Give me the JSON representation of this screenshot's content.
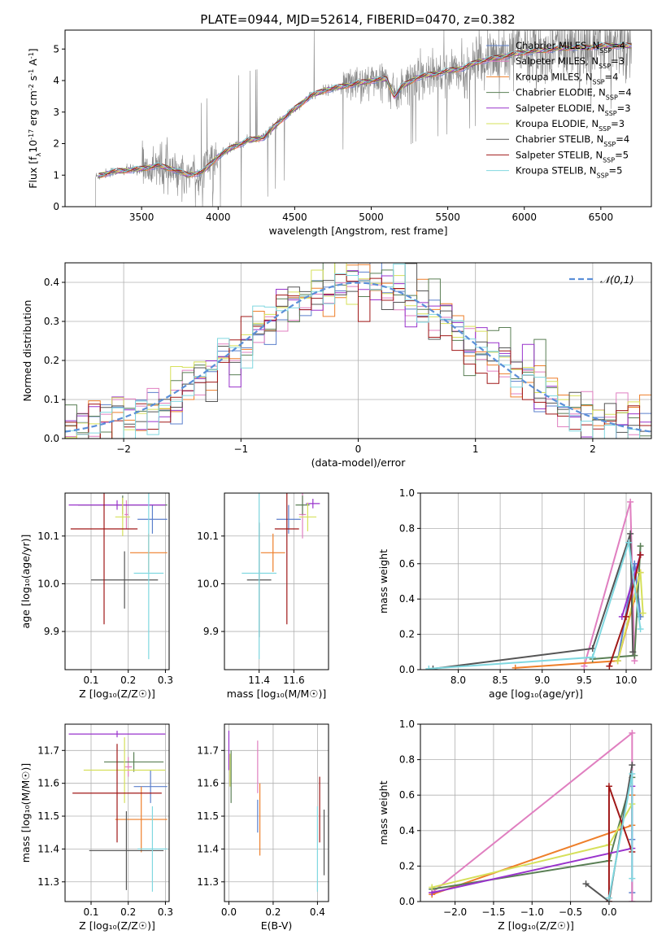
{
  "figure": {
    "title": "PLATE=0944, MJD=52614, FIBERID=0470, z=0.382"
  },
  "colors": {
    "chabrier_miles": "#5b7fcc",
    "salpeter_miles": "#e07fc0",
    "kroupa_miles": "#ee7f2a",
    "chabrier_elodie": "#5a7f55",
    "salpeter_elodie": "#9933cc",
    "kroupa_elodie": "#d6e05a",
    "chabrier_stelib": "#555555",
    "salpeter_stelib": "#a01818",
    "kroupa_stelib": "#80d8e0",
    "observed": "#888888",
    "normal_curve": "#5b8fd8"
  },
  "chart_data": [
    {
      "id": "spectrum",
      "type": "line",
      "xlabel": "wavelength [Angstrom, rest frame]",
      "ylabel": "Flux [f_λ10^{-17} erg cm^{-2} s^{-1} A^{-1}]",
      "xlim": [
        3000,
        6830
      ],
      "ylim": [
        0,
        5.6
      ],
      "xticks": [
        3500,
        4000,
        4500,
        5000,
        5500,
        6000,
        6500
      ],
      "yticks": [
        0,
        1,
        2,
        3,
        4,
        5
      ],
      "legend_position": "upper-right",
      "legend": [
        {
          "key": "chabrier_miles",
          "label": "Chabrier MILES, N_SSP=4"
        },
        {
          "key": "salpeter_miles",
          "label": "Salpeter MILES, N_SSP=3"
        },
        {
          "key": "kroupa_miles",
          "label": "Kroupa MILES, N_SSP=4"
        },
        {
          "key": "chabrier_elodie",
          "label": "Chabrier ELODIE, N_SSP=4"
        },
        {
          "key": "salpeter_elodie",
          "label": "Salpeter ELODIE, N_SSP=3"
        },
        {
          "key": "kroupa_elodie",
          "label": "Kroupa ELODIE, N_SSP=3"
        },
        {
          "key": "chabrier_stelib",
          "label": "Chabrier STELIB, N_SSP=4"
        },
        {
          "key": "salpeter_stelib",
          "label": "Salpeter STELIB, N_SSP=5"
        },
        {
          "key": "kroupa_stelib",
          "label": "Kroupa STELIB, N_SSP=5"
        }
      ],
      "continuum": [
        [
          3200,
          0.95
        ],
        [
          3300,
          1.1
        ],
        [
          3400,
          1.15
        ],
        [
          3500,
          1.2
        ],
        [
          3600,
          1.3
        ],
        [
          3700,
          1.2
        ],
        [
          3800,
          1.0
        ],
        [
          3900,
          1.1
        ],
        [
          4000,
          1.6
        ],
        [
          4100,
          1.9
        ],
        [
          4200,
          2.1
        ],
        [
          4300,
          2.2
        ],
        [
          4400,
          2.7
        ],
        [
          4500,
          3.1
        ],
        [
          4600,
          3.5
        ],
        [
          4700,
          3.7
        ],
        [
          4800,
          3.8
        ],
        [
          4900,
          3.9
        ],
        [
          5000,
          4.0
        ],
        [
          5100,
          4.05
        ],
        [
          5150,
          3.5
        ],
        [
          5200,
          3.8
        ],
        [
          5300,
          4.1
        ],
        [
          5400,
          4.2
        ],
        [
          5500,
          4.3
        ],
        [
          5600,
          4.4
        ],
        [
          5700,
          4.6
        ],
        [
          5800,
          4.7
        ],
        [
          5900,
          4.8
        ],
        [
          6000,
          4.9
        ],
        [
          6100,
          4.95
        ],
        [
          6200,
          5.0
        ],
        [
          6300,
          5.05
        ],
        [
          6400,
          5.05
        ],
        [
          6500,
          5.1
        ],
        [
          6600,
          5.1
        ],
        [
          6700,
          5.1
        ]
      ]
    },
    {
      "id": "residuals",
      "type": "histogram",
      "xlabel": "(data-model)/error",
      "ylabel": "Normed distribution",
      "xlim": [
        -2.5,
        2.5
      ],
      "ylim": [
        0,
        0.45
      ],
      "xticks": [
        -2,
        -1,
        0,
        1,
        2
      ],
      "yticks": [
        0.0,
        0.1,
        0.2,
        0.3,
        0.4
      ],
      "grid": true,
      "legend": {
        "label": "𝒩(0,1)",
        "position": "upper-right"
      },
      "bin_width": 0.1
    },
    {
      "id": "age_vs_Z",
      "type": "errorbar",
      "xlabel": "Z [log₁₀(Z/Z☉)]",
      "ylabel": "age  [log₁₀(age/yr)]",
      "xlim": [
        0.03,
        0.31
      ],
      "ylim": [
        9.82,
        10.19
      ],
      "xticks": [
        0.1,
        0.2,
        0.3
      ],
      "yticks": [
        9.9,
        10.0,
        10.1
      ],
      "grid": true,
      "points": [
        {
          "key": "chabrier_miles",
          "x": 0.265,
          "xerr": 0.04,
          "y": 10.135,
          "yerr": 0.03
        },
        {
          "key": "salpeter_miles",
          "x": 0.195,
          "xerr": 0.005,
          "y": 10.145,
          "yerr": 0.03
        },
        {
          "key": "kroupa_miles",
          "x": 0.255,
          "xerr": 0.05,
          "y": 10.065,
          "yerr": 0.04
        },
        {
          "key": "chabrier_elodie",
          "x": 0.185,
          "xerr": 0.12,
          "y": 10.165,
          "yerr": 0.02
        },
        {
          "key": "salpeter_elodie",
          "x": 0.17,
          "xerr": 0.13,
          "y": 10.165,
          "yerr": 0.01
        },
        {
          "key": "kroupa_elodie",
          "x": 0.185,
          "xerr": 0.02,
          "y": 10.14,
          "yerr": 0.04
        },
        {
          "key": "chabrier_stelib",
          "x": 0.19,
          "xerr": 0.09,
          "y": 10.008,
          "yerr": 0.06
        },
        {
          "key": "salpeter_stelib",
          "x": 0.135,
          "xerr": 0.09,
          "y": 10.115,
          "yerr": 0.2
        },
        {
          "key": "kroupa_stelib",
          "x": 0.255,
          "xerr": 0.04,
          "y": 10.022,
          "yerr": 0.18
        }
      ]
    },
    {
      "id": "age_vs_mass",
      "type": "errorbar",
      "xlabel": "mass [log₁₀(M/M☉)]",
      "xlim": [
        11.2,
        11.8
      ],
      "ylim": [
        9.82,
        10.19
      ],
      "xticks": [
        11.4,
        11.6
      ],
      "yticks": [
        9.9,
        10.0,
        10.1
      ],
      "grid": true,
      "points": [
        {
          "key": "chabrier_miles",
          "x": 11.57,
          "xerr": 0.07,
          "y": 10.135,
          "yerr": 0.03
        },
        {
          "key": "salpeter_miles",
          "x": 11.65,
          "xerr": 0.02,
          "y": 10.145,
          "yerr": 0.05
        },
        {
          "key": "kroupa_miles",
          "x": 11.48,
          "xerr": 0.07,
          "y": 10.065,
          "yerr": 0.04
        },
        {
          "key": "chabrier_elodie",
          "x": 11.65,
          "xerr": 0.04,
          "y": 10.165,
          "yerr": 0.02
        },
        {
          "key": "salpeter_elodie",
          "x": 11.71,
          "xerr": 0.04,
          "y": 10.168,
          "yerr": 0.01
        },
        {
          "key": "kroupa_elodie",
          "x": 11.68,
          "xerr": 0.05,
          "y": 10.14,
          "yerr": 0.03
        },
        {
          "key": "chabrier_stelib",
          "x": 11.4,
          "xerr": 0.07,
          "y": 10.008,
          "yerr": 0.12
        },
        {
          "key": "salpeter_stelib",
          "x": 11.56,
          "xerr": 0.07,
          "y": 10.115,
          "yerr": 0.2
        },
        {
          "key": "kroupa_stelib",
          "x": 11.4,
          "xerr": 0.1,
          "y": 10.022,
          "yerr": 0.18
        }
      ]
    },
    {
      "id": "weight_vs_age",
      "type": "line",
      "xlabel": "age  [log₁₀(age/yr)]",
      "ylabel": "mass weight",
      "xlim": [
        7.55,
        10.3
      ],
      "ylim": [
        0,
        1
      ],
      "xticks": [
        8.0,
        8.5,
        9.0,
        9.5,
        10.0
      ],
      "yticks": [
        0.0,
        0.2,
        0.4,
        0.6,
        0.8,
        1.0
      ],
      "grid": true,
      "series": [
        {
          "key": "chabrier_miles",
          "x": [
            9.9,
            10.1,
            10.17
          ],
          "y": [
            0.05,
            0.6,
            0.3
          ]
        },
        {
          "key": "salpeter_miles",
          "x": [
            9.5,
            10.05,
            10.1
          ],
          "y": [
            0.02,
            0.95,
            0.05
          ]
        },
        {
          "key": "kroupa_miles",
          "x": [
            8.68,
            9.9,
            10.1,
            10.17
          ],
          "y": [
            0.01,
            0.05,
            0.4,
            0.55
          ]
        },
        {
          "key": "chabrier_elodie",
          "x": [
            9.6,
            10.1,
            10.17
          ],
          "y": [
            0.06,
            0.08,
            0.7
          ]
        },
        {
          "key": "salpeter_elodie",
          "x": [
            9.95,
            10.17
          ],
          "y": [
            0.3,
            0.65
          ]
        },
        {
          "key": "kroupa_elodie",
          "x": [
            9.9,
            10.17,
            10.2
          ],
          "y": [
            0.05,
            0.55,
            0.32
          ]
        },
        {
          "key": "chabrier_stelib",
          "x": [
            7.7,
            9.6,
            10.05,
            10.08
          ],
          "y": [
            0.005,
            0.12,
            0.77,
            0.1
          ]
        },
        {
          "key": "salpeter_stelib",
          "x": [
            9.8,
            10.0,
            10.17
          ],
          "y": [
            0.02,
            0.3,
            0.65
          ]
        },
        {
          "key": "kroupa_stelib",
          "x": [
            7.65,
            9.6,
            10.03,
            10.17
          ],
          "y": [
            0.005,
            0.07,
            0.72,
            0.23
          ]
        }
      ]
    },
    {
      "id": "mass_vs_Z",
      "type": "errorbar",
      "xlabel": "Z [log₁₀(Z/Z☉)]",
      "ylabel": "mass [log₁₀(M/M☉)]",
      "xlim": [
        0.03,
        0.31
      ],
      "ylim": [
        11.24,
        11.78
      ],
      "xticks": [
        0.1,
        0.2,
        0.3
      ],
      "yticks": [
        11.3,
        11.4,
        11.5,
        11.6,
        11.7
      ],
      "grid": true,
      "points": [
        {
          "key": "chabrier_miles",
          "x": 0.26,
          "xerr": 0.045,
          "y": 11.59,
          "yerr": 0.05
        },
        {
          "key": "salpeter_miles",
          "x": 0.2,
          "xerr": 0.01,
          "y": 11.65,
          "yerr": 0.03
        },
        {
          "key": "kroupa_miles",
          "x": 0.235,
          "xerr": 0.07,
          "y": 11.49,
          "yerr": 0.1
        },
        {
          "key": "chabrier_elodie",
          "x": 0.215,
          "xerr": 0.08,
          "y": 11.665,
          "yerr": 0.03
        },
        {
          "key": "salpeter_elodie",
          "x": 0.17,
          "xerr": 0.13,
          "y": 11.75,
          "yerr": 0.01
        },
        {
          "key": "kroupa_elodie",
          "x": 0.19,
          "xerr": 0.11,
          "y": 11.64,
          "yerr": 0.1
        },
        {
          "key": "chabrier_stelib",
          "x": 0.195,
          "xerr": 0.1,
          "y": 11.395,
          "yerr": 0.12
        },
        {
          "key": "salpeter_stelib",
          "x": 0.17,
          "xerr": 0.12,
          "y": 11.57,
          "yerr": 0.15
        },
        {
          "key": "kroupa_stelib",
          "x": 0.265,
          "xerr": 0.04,
          "y": 11.4,
          "yerr": 0.13
        }
      ]
    },
    {
      "id": "mass_vs_EBV",
      "type": "errorbar",
      "xlabel": "E(B-V)",
      "xlim": [
        -0.02,
        0.45
      ],
      "ylim": [
        11.24,
        11.78
      ],
      "xticks": [
        0.0,
        0.2,
        0.4
      ],
      "yticks": [
        11.3,
        11.4,
        11.5,
        11.6,
        11.7
      ],
      "grid": true,
      "points": [
        {
          "key": "chabrier_miles",
          "x": 0.13,
          "y": 11.5,
          "yerr": 0.05
        },
        {
          "key": "salpeter_miles",
          "x": 0.13,
          "y": 11.65,
          "yerr": 0.08
        },
        {
          "key": "kroupa_miles",
          "x": 0.14,
          "y": 11.49,
          "yerr": 0.11
        },
        {
          "key": "chabrier_elodie",
          "x": 0.01,
          "y": 11.62,
          "yerr": 0.08
        },
        {
          "key": "salpeter_elodie",
          "x": 0.0,
          "y": 11.7,
          "yerr": 0.06
        },
        {
          "key": "kroupa_elodie",
          "x": 0.005,
          "y": 11.64,
          "yerr": 0.05
        },
        {
          "key": "chabrier_stelib",
          "x": 0.43,
          "y": 11.42,
          "yerr": 0.1
        },
        {
          "key": "salpeter_stelib",
          "x": 0.41,
          "y": 11.52,
          "yerr": 0.1
        },
        {
          "key": "kroupa_stelib",
          "x": 0.4,
          "y": 11.4,
          "yerr": 0.13
        }
      ]
    },
    {
      "id": "weight_vs_Z",
      "type": "line",
      "xlabel": "Z [log₁₀(Z/Z☉)]",
      "ylabel": "mass weight",
      "xlim": [
        -2.45,
        0.55
      ],
      "ylim": [
        0,
        1
      ],
      "xticks": [
        -2.0,
        -1.5,
        -1.0,
        -0.5,
        0.0
      ],
      "yticks": [
        0.0,
        0.2,
        0.4,
        0.6,
        0.8,
        1.0
      ],
      "grid": true,
      "series": [
        {
          "key": "chabrier_miles",
          "x": [
            0.3,
            0.3,
            0.3
          ],
          "y": [
            0.05,
            0.6,
            0.35
          ]
        },
        {
          "key": "salpeter_miles",
          "x": [
            -2.3,
            0.3,
            0.3
          ],
          "y": [
            0.05,
            0.95,
            0.0
          ]
        },
        {
          "key": "kroupa_miles",
          "x": [
            -2.3,
            0.3,
            0.3
          ],
          "y": [
            0.04,
            0.43,
            0.6
          ]
        },
        {
          "key": "chabrier_elodie",
          "x": [
            -2.3,
            0.0,
            0.3
          ],
          "y": [
            0.07,
            0.23,
            0.7
          ]
        },
        {
          "key": "salpeter_elodie",
          "x": [
            -2.3,
            0.3,
            0.3
          ],
          "y": [
            0.05,
            0.3,
            0.65
          ]
        },
        {
          "key": "kroupa_elodie",
          "x": [
            -2.3,
            0.0,
            0.3
          ],
          "y": [
            0.08,
            0.32,
            0.55
          ]
        },
        {
          "key": "chabrier_stelib",
          "x": [
            -0.3,
            0.0,
            0.3
          ],
          "y": [
            0.1,
            0.0,
            0.77
          ]
        },
        {
          "key": "salpeter_stelib",
          "x": [
            0.0,
            0.0,
            0.3
          ],
          "y": [
            0.0,
            0.65,
            0.28
          ]
        },
        {
          "key": "kroupa_stelib",
          "x": [
            0.0,
            0.3,
            0.3
          ],
          "y": [
            0.02,
            0.72,
            0.13
          ]
        }
      ]
    }
  ]
}
